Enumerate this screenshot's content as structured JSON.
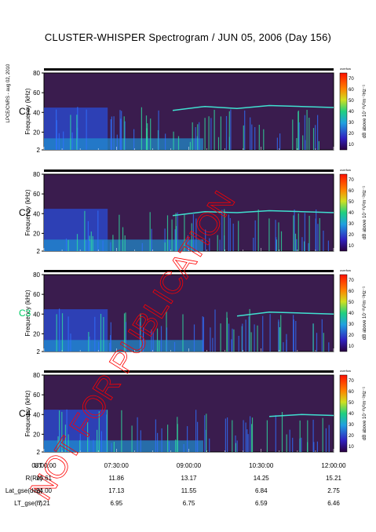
{
  "title": "CLUSTER-WHISPER Spectrogram / JUN 05, 2006 (Day 156)",
  "stamp": "LPCE/CNRS - aug 02, 2010",
  "watermark": "NOT FOR PUBLICATION",
  "colors": {
    "background_spectrum": "#3a1c4e",
    "line_emission": "#40e0d0",
    "stamp": "#ff0000"
  },
  "chart_data": {
    "type": "heatmap",
    "x_time_ticks": [
      "08:00:00",
      "07:30:00",
      "09:00:00",
      "10:30:00",
      "12:00:00"
    ],
    "panels": [
      {
        "spacecraft": "C1",
        "label_color": "#000000",
        "ylabel": "Frequency (kHz)",
        "yticks": [
          2,
          20,
          40,
          60,
          80
        ],
        "ylim": [
          2,
          80
        ],
        "colorbar": {
          "label": "dB above 10⁻⁸V²m⁻²Hz⁻¹",
          "ticks": [
            10,
            20,
            30,
            40,
            50,
            60,
            70
          ],
          "header": "overfow"
        },
        "emission_line_khz": [
          null,
          null,
          null,
          null,
          42,
          46,
          44,
          47,
          46,
          45
        ]
      },
      {
        "spacecraft": "C2",
        "label_color": "#000000",
        "ylabel": "Frequency (kHz)",
        "yticks": [
          2,
          20,
          40,
          60,
          80
        ],
        "ylim": [
          2,
          80
        ],
        "colorbar": {
          "label": "dB above 10⁻⁸V²m⁻²Hz⁻¹",
          "ticks": [
            10,
            20,
            30,
            40,
            50,
            60,
            70
          ],
          "header": "overfow"
        },
        "emission_line_khz": [
          null,
          null,
          null,
          null,
          38,
          42,
          41,
          43,
          42,
          41
        ]
      },
      {
        "spacecraft": "C3",
        "label_color": "#00cc66",
        "ylabel": "Frequency (kHz)",
        "yticks": [
          2,
          20,
          40,
          60,
          80
        ],
        "ylim": [
          2,
          80
        ],
        "colorbar": {
          "label": "dB above 10⁻⁸V²m⁻²Hz⁻¹",
          "ticks": [
            10,
            20,
            30,
            40,
            50,
            60,
            70
          ],
          "header": "overfow"
        },
        "emission_line_khz": [
          null,
          null,
          null,
          null,
          null,
          null,
          38,
          42,
          41,
          40
        ]
      },
      {
        "spacecraft": "C4",
        "label_color": "#000000",
        "ylabel": "Frequency (kHz)",
        "yticks": [
          2,
          20,
          40,
          60,
          80
        ],
        "ylim": [
          2,
          80
        ],
        "colorbar": {
          "label": "dB above 10⁻⁸V²m⁻²Hz⁻¹",
          "ticks": [
            10,
            20,
            30,
            40,
            50,
            60,
            70
          ],
          "header": "overfow"
        },
        "emission_line_khz": [
          null,
          null,
          null,
          null,
          null,
          null,
          null,
          38,
          40,
          39
        ]
      }
    ],
    "ephemeris": {
      "rows": [
        {
          "label": "UT",
          "values": [
            "08:00:00",
            "07:30:00",
            "09:00:00",
            "10:30:00",
            "12:00:00"
          ]
        },
        {
          "label": "R(Re)",
          "values": [
            "10.61",
            "11.86",
            "13.17",
            "14.25",
            "15.21"
          ]
        },
        {
          "label": "Lat_gse(deg)",
          "values": [
            "24.00",
            "17.13",
            "11.55",
            "6.84",
            "2.75"
          ]
        },
        {
          "label": "LT_gse(h)",
          "values": [
            "7.21",
            "6.95",
            "6.75",
            "6.59",
            "6.46"
          ]
        }
      ]
    }
  }
}
